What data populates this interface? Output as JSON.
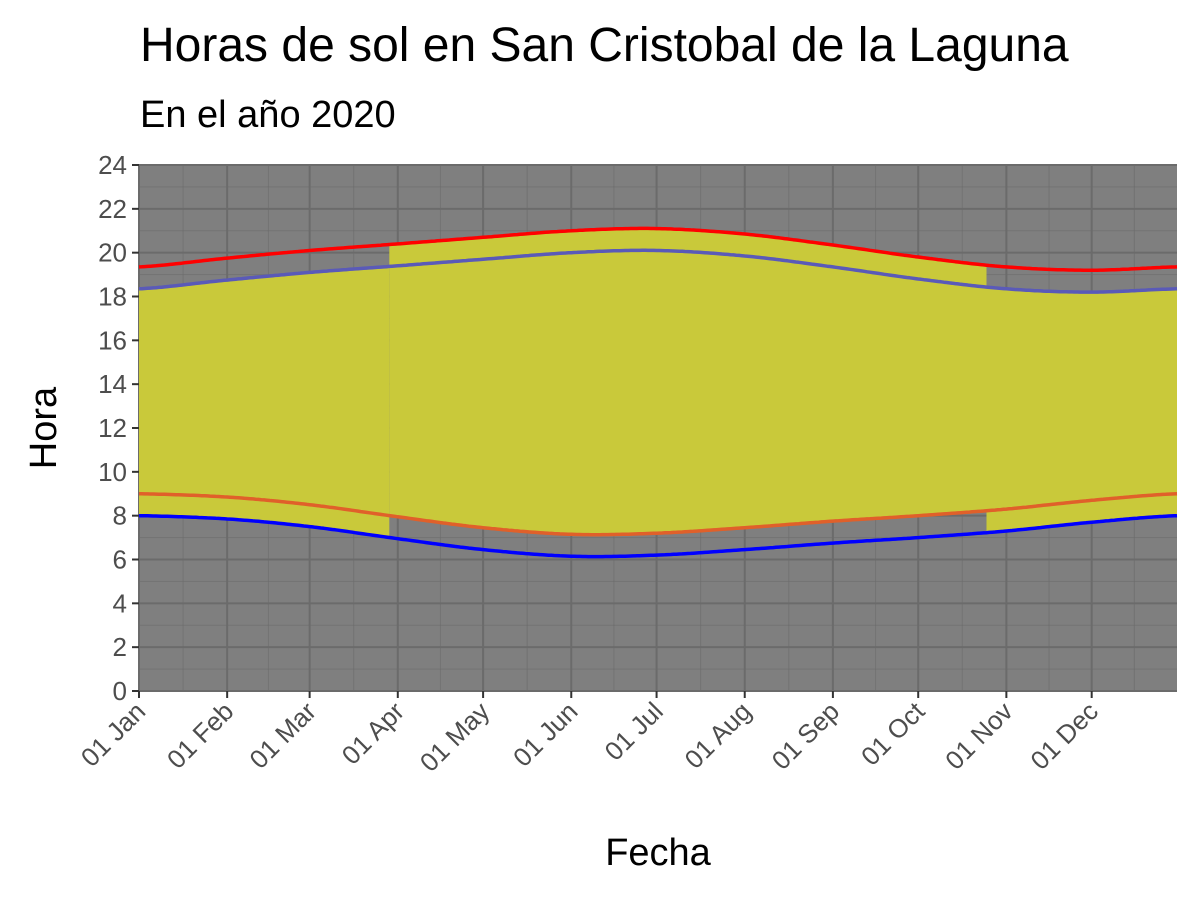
{
  "chart_data": {
    "type": "area",
    "title": "Horas de sol en San Cristobal de la Laguna",
    "subtitle": "En el año 2020",
    "xlabel": "Fecha",
    "ylabel": "Hora",
    "ylim": [
      0,
      24
    ],
    "yticks": [
      "0",
      "2",
      "4",
      "6",
      "8",
      "10",
      "12",
      "14",
      "16",
      "18",
      "20",
      "22",
      "24"
    ],
    "xticks": [
      "01 Jan",
      "01 Feb",
      "01 Mar",
      "01 Apr",
      "01 May",
      "01 Jun",
      "01 Jul",
      "01 Aug",
      "01 Sep",
      "01 Oct",
      "01 Nov",
      "01 Dec"
    ],
    "xlim": [
      "2020-01-01",
      "2020-12-31"
    ],
    "dst_period": [
      "2020-03-29",
      "2020-10-25"
    ],
    "grid": true,
    "colors": {
      "panel": "#7f7f7f",
      "grid": "#6b6b6b",
      "daylight_fill": "#c9c93a",
      "sunrise_utc": "#0000ff",
      "sunset_utc": "#ff0000",
      "sunrise_local": "#e0602a",
      "sunset_local": "#5a5ab8"
    },
    "x": [
      "2020-01-01",
      "2020-02-01",
      "2020-03-01",
      "2020-04-01",
      "2020-05-01",
      "2020-06-01",
      "2020-07-01",
      "2020-08-01",
      "2020-09-01",
      "2020-10-01",
      "2020-11-01",
      "2020-12-01",
      "2020-12-31"
    ],
    "series": [
      {
        "values": [
          8.0,
          7.85,
          7.5,
          6.95,
          6.45,
          6.15,
          6.2,
          6.45,
          6.75,
          7.0,
          7.3,
          7.7,
          8.0
        ]
      },
      {
        "values": [
          19.35,
          19.75,
          20.1,
          20.4,
          20.7,
          21.0,
          21.1,
          20.85,
          20.35,
          19.8,
          19.35,
          19.2,
          19.35
        ]
      },
      {
        "values": [
          9.0,
          8.85,
          8.5,
          7.95,
          7.45,
          7.15,
          7.2,
          7.45,
          7.75,
          8.0,
          8.3,
          8.7,
          9.0
        ]
      },
      {
        "values": [
          18.35,
          18.75,
          19.1,
          19.4,
          19.7,
          20.0,
          20.1,
          19.85,
          19.35,
          18.8,
          18.35,
          18.2,
          18.35
        ]
      }
    ]
  }
}
